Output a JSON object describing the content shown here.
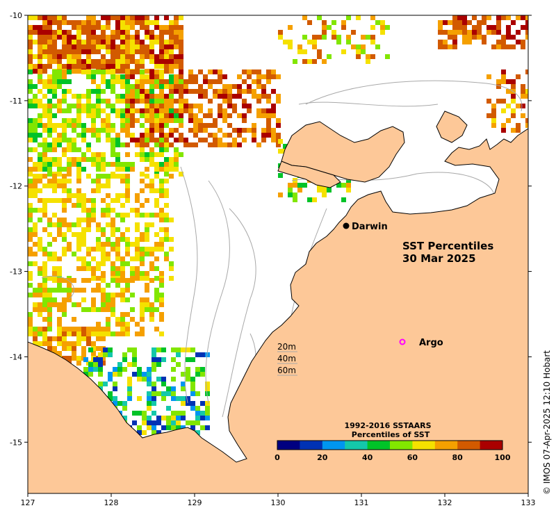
{
  "map": {
    "title_line1": "SST Percentiles",
    "title_line2": "30 Mar 2025",
    "x_ticks": [
      "127",
      "128",
      "129",
      "130",
      "131",
      "132",
      "133"
    ],
    "y_ticks": [
      "-10",
      "-11",
      "-12",
      "-13",
      "-14",
      "-15"
    ],
    "x_range": [
      127,
      133
    ],
    "y_range": [
      -15.6,
      -10
    ],
    "land_color": "#fdc898",
    "ocean_color": "#ffffff",
    "contour_color": "#a8a8a8"
  },
  "places": {
    "darwin": {
      "label": "Darwin",
      "lon": 130.84,
      "lat": -12.46
    },
    "argo": {
      "label": "Argo",
      "lon": 131.5,
      "lat": -13.82,
      "color": "#ff00ff"
    }
  },
  "depth_legend": [
    "20m",
    "40m",
    "60m"
  ],
  "colorbar": {
    "title_line1": "1992-2016 SSTAARS",
    "title_line2": "Percentiles of SST",
    "ticks": [
      "0",
      "20",
      "40",
      "60",
      "80",
      "100"
    ],
    "colors": [
      "#000080",
      "#0032b4",
      "#0096f0",
      "#14c8aa",
      "#00c328",
      "#82e600",
      "#f5e100",
      "#f5a000",
      "#d25a00",
      "#aa0000"
    ]
  },
  "credit": "© IMOS 07-Apr-2025 12:10 Hobart"
}
